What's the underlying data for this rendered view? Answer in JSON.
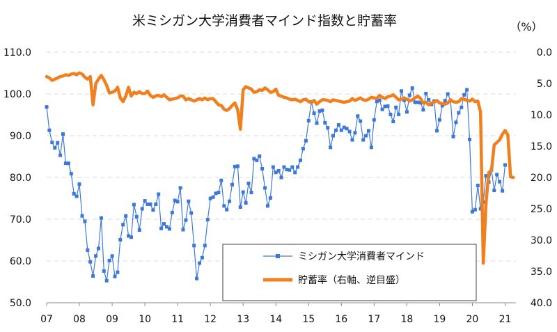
{
  "chart_data": {
    "type": "line",
    "title": "米ミシガン大学消費者マインド指数と貯蓄率",
    "right_unit": "（%）",
    "x_tick_labels": [
      "07",
      "08",
      "09",
      "10",
      "11",
      "12",
      "13",
      "14",
      "15",
      "16",
      "17",
      "18",
      "19",
      "20",
      "21"
    ],
    "x_range": [
      2007.0,
      2021.33
    ],
    "left_axis": {
      "min": 50,
      "max": 110,
      "step": 10,
      "tick_labels": [
        "110.0",
        "100.0",
        "90.0",
        "80.0",
        "70.0",
        "60.0",
        "50.0"
      ]
    },
    "right_axis": {
      "min": 0,
      "max": 40,
      "step": 5,
      "inverted": true,
      "tick_labels": [
        "0.0",
        "5.0",
        "10.0",
        "15.0",
        "20.0",
        "25.0",
        "30.0",
        "35.0",
        "40.0"
      ]
    },
    "grid": true,
    "legend_position": "bottom-center",
    "series": [
      {
        "name": "ミシガン大学消費者マインド",
        "axis": "left",
        "color": "#3c78d8",
        "marker": "square",
        "start_year": 2007.0,
        "step_months": 1,
        "values": [
          96.9,
          91.3,
          88.4,
          87.1,
          88.3,
          85.3,
          90.4,
          83.4,
          83.4,
          80.9,
          76.1,
          75.5,
          78.4,
          70.8,
          69.5,
          62.6,
          59.8,
          56.4,
          61.2,
          63.0,
          70.3,
          57.6,
          55.3,
          60.1,
          61.2,
          56.3,
          57.3,
          65.1,
          68.7,
          70.8,
          66.0,
          65.7,
          73.5,
          70.6,
          67.4,
          72.5,
          74.4,
          73.6,
          73.6,
          72.2,
          73.6,
          76.0,
          67.8,
          68.9,
          68.2,
          67.7,
          71.6,
          74.5,
          74.2,
          77.5,
          67.5,
          69.8,
          74.3,
          71.5,
          63.7,
          55.8,
          59.5,
          60.8,
          63.7,
          69.9,
          75.0,
          75.3,
          76.2,
          76.4,
          79.3,
          73.2,
          72.3,
          74.3,
          78.3,
          82.6,
          82.7,
          72.9,
          76.5,
          73.9,
          78.6,
          76.4,
          84.5,
          84.1,
          85.1,
          82.1,
          77.5,
          73.2,
          75.1,
          82.5,
          81.2,
          81.6,
          80.0,
          82.5,
          81.9,
          81.8,
          82.5,
          81.2,
          82.5,
          84.1,
          86.9,
          88.8,
          93.6,
          98.1,
          95.4,
          93.0,
          95.9,
          96.1,
          93.1,
          91.9,
          87.2,
          90.0,
          91.3,
          92.6,
          91.3,
          92.0,
          91.7,
          91.0,
          89.0,
          90.7,
          94.7,
          93.5,
          89.0,
          90.0,
          91.2,
          87.2,
          93.8,
          98.2,
          98.5,
          96.3,
          97.0,
          97.1,
          95.1,
          93.4,
          96.8,
          95.1,
          100.7,
          98.5,
          95.7,
          99.7,
          101.4,
          98.0,
          98.0,
          97.9,
          96.2,
          100.1,
          98.6,
          97.5,
          98.3,
          91.2,
          93.8,
          97.2,
          98.4,
          100.0,
          98.4,
          89.8,
          93.2,
          95.5,
          96.8,
          99.8,
          101.0,
          89.1,
          71.8,
          72.3,
          78.1,
          72.5,
          74.1,
          80.4,
          78.9,
          81.8,
          76.9,
          80.7,
          79.0,
          76.8,
          83.0
        ]
      },
      {
        "name": "貯蓄率（右軸、逆目盛）",
        "axis": "right",
        "color": "#f07f1e",
        "marker": "none",
        "start_year": 2007.0,
        "step_months": 1,
        "values": [
          3.9,
          4.1,
          4.5,
          4.3,
          4.1,
          3.9,
          3.8,
          3.6,
          3.7,
          3.5,
          3.4,
          3.6,
          3.3,
          3.5,
          4.0,
          4.3,
          3.9,
          8.4,
          5.0,
          4.3,
          3.7,
          4.4,
          5.3,
          6.5,
          6.4,
          6.2,
          5.6,
          7.3,
          7.9,
          7.0,
          5.6,
          7.0,
          6.4,
          6.6,
          6.3,
          6.6,
          6.6,
          6.2,
          6.9,
          7.2,
          7.0,
          6.9,
          7.1,
          6.8,
          7.2,
          7.6,
          7.5,
          7.4,
          7.3,
          7.0,
          7.0,
          7.6,
          7.4,
          7.6,
          7.8,
          7.6,
          7.4,
          7.6,
          7.3,
          7.6,
          7.4,
          7.4,
          7.9,
          8.4,
          8.5,
          9.1,
          9.3,
          9.0,
          8.5,
          8.1,
          9.2,
          12.3,
          6.0,
          5.5,
          5.7,
          5.9,
          6.4,
          6.3,
          6.0,
          6.1,
          5.7,
          6.0,
          6.4,
          6.3,
          5.9,
          6.9,
          7.0,
          7.2,
          7.3,
          7.5,
          7.6,
          7.5,
          7.7,
          7.9,
          7.6,
          7.5,
          7.9,
          8.0,
          7.7,
          8.3,
          7.9,
          7.6,
          7.6,
          7.7,
          7.9,
          7.6,
          7.7,
          7.8,
          7.9,
          8.0,
          7.9,
          7.8,
          7.4,
          7.7,
          7.5,
          7.3,
          7.6,
          7.7,
          7.5,
          7.2,
          7.3,
          7.4,
          6.9,
          7.2,
          7.4,
          7.1,
          7.0,
          6.8,
          7.2,
          7.6,
          7.5,
          7.3,
          7.5,
          7.8,
          7.6,
          7.3,
          7.0,
          7.4,
          8.1,
          8.0,
          8.4,
          8.1,
          8.0,
          7.7,
          8.1,
          8.2,
          8.3,
          8.1,
          7.6,
          7.9,
          8.0,
          7.9,
          7.4,
          7.5,
          7.7,
          7.8,
          7.5,
          7.9,
          7.8,
          9.6,
          33.7,
          24.2,
          19.2,
          18.9,
          14.8,
          14.4,
          14.0,
          13.1,
          12.5,
          13.2,
          19.9,
          20.0
        ]
      }
    ]
  }
}
